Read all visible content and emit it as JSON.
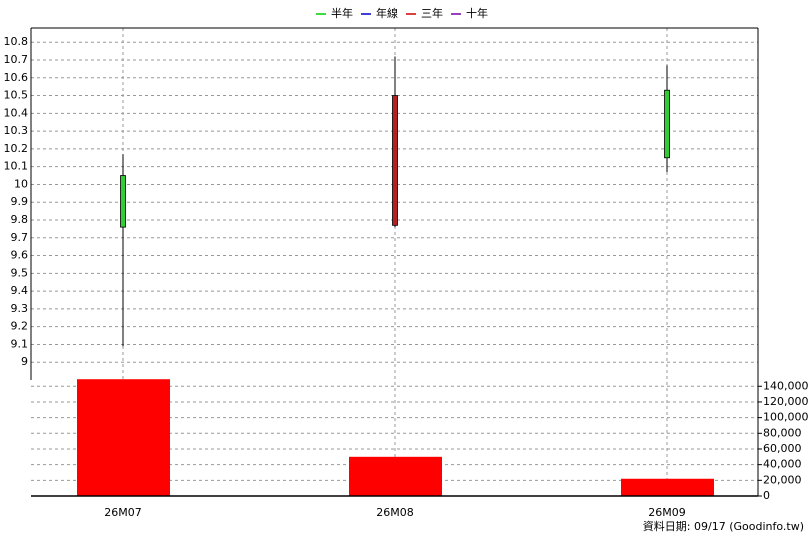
{
  "chart_data": [
    {
      "type": "candlestick",
      "categories": [
        "26M07",
        "26M08",
        "26M09"
      ],
      "open": [
        10.05,
        9.77,
        10.53
      ],
      "high": [
        10.17,
        10.72,
        10.67
      ],
      "low": [
        9.09,
        9.76,
        10.07
      ],
      "close": [
        9.76,
        10.5,
        10.15
      ],
      "up_color": "#b22222",
      "down_color": "#33cc33",
      "series": [
        {
          "name": "半年",
          "color": "#00cc00"
        },
        {
          "name": "年線",
          "color": "#0000cc"
        },
        {
          "name": "三年",
          "color": "#cc0000"
        },
        {
          "name": "十年",
          "color": "#7700aa"
        }
      ],
      "ylim": [
        8.9,
        10.88
      ],
      "yticks": [
        9,
        9.1,
        9.2,
        9.3,
        9.4,
        9.5,
        9.6,
        9.7,
        9.8,
        9.9,
        10,
        10.1,
        10.2,
        10.3,
        10.4,
        10.5,
        10.6,
        10.7,
        10.8
      ],
      "grid": true
    },
    {
      "type": "bar",
      "values": [
        149000,
        50000,
        22000
      ],
      "color": "#ff0000",
      "ylim": [
        0,
        148000
      ],
      "yticks": [
        0,
        {
          "value": 20000,
          "label": "20,000"
        },
        {
          "value": 40000,
          "label": "40,000"
        },
        {
          "value": 60000,
          "label": "60,000"
        },
        {
          "value": 80000,
          "label": "80,000"
        },
        {
          "value": 100000,
          "label": "100,000"
        },
        {
          "value": 120000,
          "label": "120,000"
        },
        {
          "value": 140000,
          "label": "140,000"
        }
      ],
      "grid": true
    }
  ],
  "footer": "資料日期: 09/17  (Goodinfo.tw)"
}
